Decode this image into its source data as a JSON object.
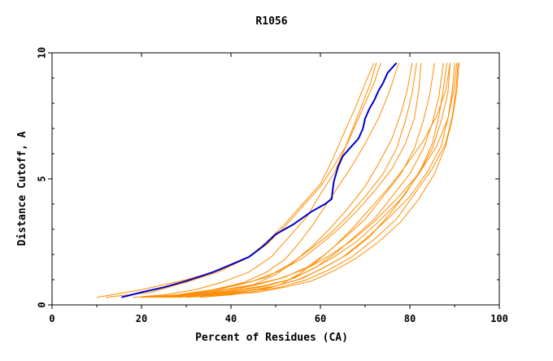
{
  "chart_data": {
    "type": "line",
    "title": "R1056",
    "xlabel": "Percent of Residues (CA)",
    "ylabel": "Distance Cutoff, A",
    "xlim": [
      0,
      100
    ],
    "ylim": [
      0,
      10
    ],
    "x_ticks": [
      "0",
      "20",
      "40",
      "60",
      "80",
      "100"
    ],
    "y_ticks": [
      "0",
      "5",
      "10"
    ],
    "grid": false,
    "colors": {
      "highlight": "#0000cc",
      "others": "#ff8c00"
    },
    "series": [
      {
        "highlight": true,
        "x": [
          15.5,
          20,
          25,
          30,
          36,
          40,
          44,
          47,
          50,
          54,
          58,
          61,
          62.5,
          62.7,
          63,
          64,
          65,
          67,
          68.5,
          69.5,
          70,
          71,
          72,
          73,
          74,
          75,
          76,
          77
        ],
        "y": [
          0.3,
          0.5,
          0.7,
          0.95,
          1.3,
          1.6,
          1.9,
          2.3,
          2.8,
          3.2,
          3.7,
          4.0,
          4.2,
          4.5,
          4.9,
          5.5,
          5.9,
          6.3,
          6.6,
          7.0,
          7.4,
          7.8,
          8.1,
          8.5,
          8.8,
          9.2,
          9.4,
          9.6
        ]
      },
      {
        "x": [
          10,
          20,
          30,
          38,
          44,
          48,
          52,
          56,
          60,
          62,
          64,
          66,
          68,
          70,
          72
        ],
        "y": [
          0.3,
          0.6,
          1.0,
          1.4,
          1.9,
          2.5,
          3.2,
          4.0,
          4.8,
          5.5,
          6.3,
          7.1,
          7.9,
          8.8,
          9.6
        ]
      },
      {
        "x": [
          12,
          22,
          30,
          37,
          43,
          48,
          52,
          56,
          60,
          63,
          66,
          68,
          70,
          72,
          73.5
        ],
        "y": [
          0.3,
          0.5,
          0.9,
          1.3,
          1.8,
          2.4,
          3.1,
          3.9,
          4.7,
          5.5,
          6.4,
          7.2,
          8.0,
          8.8,
          9.6
        ]
      },
      {
        "x": [
          18,
          25,
          32,
          38,
          44,
          49,
          53,
          57,
          60,
          63,
          65,
          67,
          69,
          71,
          72.5
        ],
        "y": [
          0.3,
          0.4,
          0.6,
          0.9,
          1.3,
          1.9,
          2.7,
          3.5,
          4.4,
          5.2,
          6.0,
          6.9,
          7.8,
          8.7,
          9.6
        ]
      },
      {
        "x": [
          20,
          28,
          36,
          43,
          48,
          52,
          55,
          58,
          61,
          64,
          67,
          70,
          73,
          75.5,
          77.5
        ],
        "y": [
          0.3,
          0.4,
          0.6,
          0.9,
          1.3,
          1.8,
          2.4,
          3.1,
          3.9,
          4.7,
          5.5,
          6.4,
          7.4,
          8.5,
          9.6
        ]
      },
      {
        "x": [
          22,
          30,
          38,
          45,
          50,
          54,
          58,
          62,
          66,
          70,
          73,
          76,
          78,
          79.5,
          80.5
        ],
        "y": [
          0.3,
          0.4,
          0.6,
          0.8,
          1.2,
          1.7,
          2.3,
          3.0,
          3.8,
          4.7,
          5.6,
          6.6,
          7.6,
          8.6,
          9.6
        ]
      },
      {
        "x": [
          20,
          28,
          36,
          42,
          48,
          53,
          57,
          62,
          66,
          70,
          74,
          77,
          79,
          80.5,
          81.5
        ],
        "y": [
          0.3,
          0.4,
          0.6,
          0.8,
          1.1,
          1.6,
          2.1,
          2.8,
          3.5,
          4.3,
          5.2,
          6.2,
          7.3,
          8.4,
          9.6
        ]
      },
      {
        "x": [
          23,
          31,
          39,
          46,
          52,
          57,
          61,
          65,
          70,
          74,
          78,
          81,
          83,
          84.5,
          85.5
        ],
        "y": [
          0.3,
          0.4,
          0.55,
          0.8,
          1.1,
          1.5,
          2.0,
          2.6,
          3.4,
          4.3,
          5.2,
          6.2,
          7.3,
          8.4,
          9.6
        ]
      },
      {
        "x": [
          25,
          33,
          41,
          48,
          54,
          59,
          63,
          67,
          72,
          76,
          80,
          83,
          85,
          86.5,
          87.5
        ],
        "y": [
          0.3,
          0.4,
          0.55,
          0.75,
          1.05,
          1.5,
          2.0,
          2.6,
          3.4,
          4.3,
          5.2,
          6.2,
          7.2,
          8.3,
          9.6
        ]
      },
      {
        "x": [
          24,
          32,
          40,
          47,
          53,
          58,
          63,
          68,
          73,
          78,
          82,
          85,
          87,
          88.5,
          89
        ],
        "y": [
          0.3,
          0.4,
          0.55,
          0.75,
          1.0,
          1.4,
          1.9,
          2.5,
          3.3,
          4.2,
          5.2,
          6.2,
          7.3,
          8.4,
          9.6
        ]
      },
      {
        "x": [
          26,
          34,
          42,
          49,
          55,
          60,
          65,
          70,
          75,
          80,
          84,
          87,
          88.5,
          89.5,
          90
        ],
        "y": [
          0.3,
          0.4,
          0.5,
          0.7,
          1.0,
          1.4,
          1.9,
          2.6,
          3.4,
          4.3,
          5.3,
          6.3,
          7.4,
          8.5,
          9.6
        ]
      },
      {
        "x": [
          28,
          36,
          44,
          51,
          57,
          62,
          67,
          72,
          77,
          81,
          85,
          88,
          89.5,
          90.3,
          90.8
        ],
        "y": [
          0.3,
          0.4,
          0.5,
          0.7,
          1.0,
          1.4,
          1.9,
          2.6,
          3.4,
          4.4,
          5.4,
          6.4,
          7.5,
          8.6,
          9.6
        ]
      },
      {
        "x": [
          21,
          29,
          37,
          44,
          51,
          57,
          62,
          67,
          72,
          77,
          82,
          86,
          88.5,
          89.8,
          90.5
        ],
        "y": [
          0.3,
          0.4,
          0.55,
          0.75,
          1.05,
          1.45,
          1.95,
          2.55,
          3.3,
          4.2,
          5.2,
          6.3,
          7.4,
          8.5,
          9.6
        ]
      },
      {
        "x": [
          30,
          38,
          46,
          52,
          58,
          63,
          68,
          73,
          78,
          82,
          85.5,
          88,
          89.5,
          90.5,
          91
        ],
        "y": [
          0.3,
          0.4,
          0.5,
          0.7,
          0.95,
          1.35,
          1.85,
          2.5,
          3.3,
          4.2,
          5.2,
          6.3,
          7.4,
          8.5,
          9.6
        ]
      },
      {
        "x": [
          27,
          35,
          43,
          50,
          56,
          61,
          66,
          71,
          75,
          79,
          82.5,
          85,
          86.5,
          87.5,
          88.3
        ],
        "y": [
          0.3,
          0.4,
          0.55,
          0.75,
          1.05,
          1.5,
          2.0,
          2.7,
          3.5,
          4.4,
          5.4,
          6.4,
          7.5,
          8.6,
          9.6
        ]
      },
      {
        "x": [
          24,
          31,
          38,
          45,
          51,
          56,
          60,
          64,
          68,
          72,
          76,
          79,
          81,
          82,
          82.5
        ],
        "y": [
          0.3,
          0.45,
          0.65,
          0.95,
          1.35,
          1.85,
          2.4,
          3.0,
          3.7,
          4.5,
          5.4,
          6.4,
          7.4,
          8.5,
          9.6
        ]
      },
      {
        "x": [
          33,
          40,
          46,
          51,
          55,
          59,
          63,
          67,
          71,
          75,
          79,
          83,
          86,
          88,
          89
        ],
        "y": [
          0.3,
          0.4,
          0.55,
          0.8,
          1.2,
          1.7,
          2.3,
          3.0,
          3.8,
          4.6,
          5.5,
          6.5,
          7.5,
          8.5,
          9.6
        ]
      }
    ]
  }
}
